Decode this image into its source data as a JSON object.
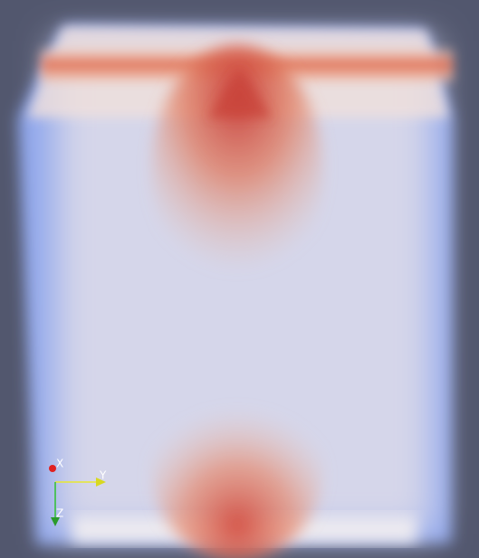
{
  "orientation_axes": {
    "x_label": "X",
    "y_label": "Y",
    "z_label": "Z"
  }
}
